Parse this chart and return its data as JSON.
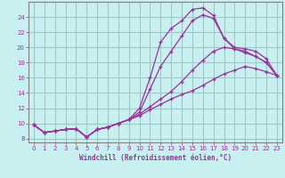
{
  "xlabel": "Windchill (Refroidissement éolien,°C)",
  "background_color": "#c8f0f0",
  "grid_color": "#a0c8c8",
  "line_color": "#993399",
  "xlim": [
    -0.5,
    23.5
  ],
  "ylim": [
    7.5,
    26.0
  ],
  "xticks": [
    0,
    1,
    2,
    3,
    4,
    5,
    6,
    7,
    8,
    9,
    10,
    11,
    12,
    13,
    14,
    15,
    16,
    17,
    18,
    19,
    20,
    21,
    22,
    23
  ],
  "yticks": [
    8,
    10,
    12,
    14,
    16,
    18,
    20,
    22,
    24
  ],
  "curves": [
    {
      "x": [
        0,
        1,
        2,
        3,
        4,
        5,
        6,
        7,
        8,
        9,
        10,
        11,
        12,
        13,
        14,
        15,
        16,
        17,
        18,
        19,
        20,
        21,
        22,
        23
      ],
      "y": [
        9.8,
        8.8,
        9.0,
        9.2,
        9.3,
        8.2,
        9.2,
        9.5,
        10.0,
        10.5,
        12.0,
        16.0,
        20.7,
        22.5,
        23.5,
        25.0,
        25.2,
        24.2,
        21.2,
        20.0,
        19.8,
        19.5,
        18.5,
        16.3
      ]
    },
    {
      "x": [
        0,
        1,
        2,
        3,
        4,
        5,
        6,
        7,
        8,
        9,
        10,
        11,
        12,
        13,
        14,
        15,
        16,
        17,
        18,
        19,
        20,
        21,
        22,
        23
      ],
      "y": [
        9.8,
        8.8,
        9.0,
        9.2,
        9.3,
        8.2,
        9.2,
        9.5,
        10.0,
        10.5,
        11.5,
        14.5,
        17.5,
        19.5,
        21.5,
        23.5,
        24.3,
        23.8,
        21.2,
        19.8,
        19.3,
        18.8,
        18.0,
        16.3
      ]
    },
    {
      "x": [
        0,
        1,
        2,
        3,
        4,
        5,
        6,
        7,
        8,
        9,
        10,
        11,
        12,
        13,
        14,
        15,
        16,
        17,
        18,
        19,
        20,
        21,
        22,
        23
      ],
      "y": [
        9.8,
        8.8,
        9.0,
        9.2,
        9.3,
        8.2,
        9.2,
        9.5,
        10.0,
        10.5,
        11.2,
        12.2,
        13.2,
        14.2,
        15.5,
        17.0,
        18.3,
        19.5,
        20.0,
        19.8,
        19.5,
        18.8,
        18.0,
        16.3
      ]
    },
    {
      "x": [
        0,
        1,
        2,
        3,
        4,
        5,
        6,
        7,
        8,
        9,
        10,
        11,
        12,
        13,
        14,
        15,
        16,
        17,
        18,
        19,
        20,
        21,
        22,
        23
      ],
      "y": [
        9.8,
        8.8,
        9.0,
        9.2,
        9.3,
        8.2,
        9.2,
        9.5,
        10.0,
        10.5,
        11.0,
        11.8,
        12.5,
        13.2,
        13.8,
        14.3,
        15.0,
        15.8,
        16.5,
        17.0,
        17.5,
        17.2,
        16.8,
        16.3
      ]
    }
  ]
}
